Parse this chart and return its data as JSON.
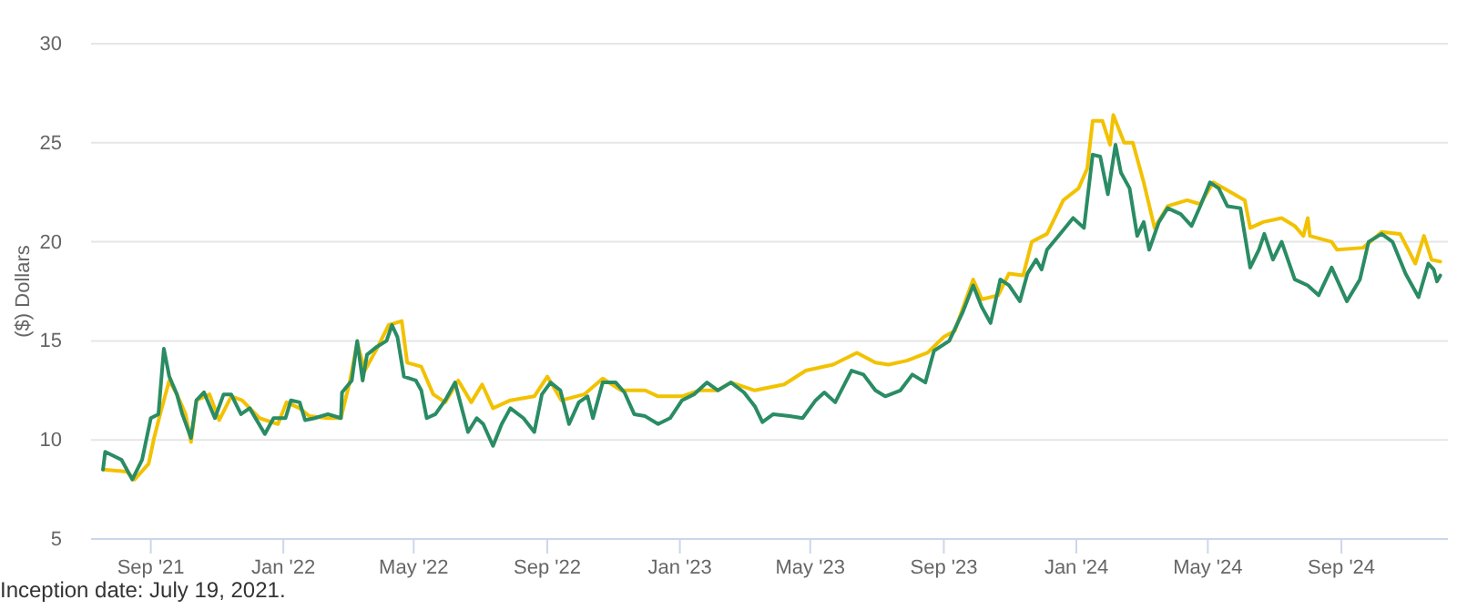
{
  "chart_data": {
    "type": "line",
    "ylabel": "($) Dollars",
    "annotations": [
      "Inception date: July 19, 2021."
    ],
    "xlim": [
      "2021-07-08",
      "2024-12-08"
    ],
    "xticks": [
      {
        "value": "2021-09-01",
        "label": "Sep '21"
      },
      {
        "value": "2022-01-01",
        "label": "Jan '22"
      },
      {
        "value": "2022-05-01",
        "label": "May '22"
      },
      {
        "value": "2022-09-01",
        "label": "Sep '22"
      },
      {
        "value": "2023-01-01",
        "label": "Jan '23"
      },
      {
        "value": "2023-05-01",
        "label": "May '23"
      },
      {
        "value": "2023-09-01",
        "label": "Sep '23"
      },
      {
        "value": "2024-01-01",
        "label": "Jan '24"
      },
      {
        "value": "2024-05-01",
        "label": "May '24"
      },
      {
        "value": "2024-09-01",
        "label": "Sep '24"
      }
    ],
    "ylim": [
      5,
      30
    ],
    "yticks": [
      5,
      10,
      15,
      20,
      25,
      30
    ],
    "grid": "y",
    "marker": "none",
    "line_style": "solid",
    "series": [
      {
        "color": "#f2c200",
        "x": [
          "2021-07-19",
          "2021-08-10",
          "2021-08-17",
          "2021-08-30",
          "2021-09-04",
          "2021-09-11",
          "2021-09-18",
          "2021-09-25",
          "2021-10-03",
          "2021-10-08",
          "2021-10-13",
          "2021-10-25",
          "2021-11-03",
          "2021-11-14",
          "2021-11-24",
          "2021-12-10",
          "2021-12-27",
          "2022-01-04",
          "2022-01-16",
          "2022-01-25",
          "2022-02-11",
          "2022-02-23",
          "2022-03-03",
          "2022-03-10",
          "2022-03-17",
          "2022-03-28",
          "2022-04-08",
          "2022-04-20",
          "2022-04-25",
          "2022-05-08",
          "2022-05-19",
          "2022-05-30",
          "2022-06-11",
          "2022-06-23",
          "2022-07-03",
          "2022-07-13",
          "2022-07-29",
          "2022-08-20",
          "2022-09-01",
          "2022-09-14",
          "2022-10-05",
          "2022-10-22",
          "2022-11-08",
          "2022-11-30",
          "2022-12-12",
          "2023-01-03",
          "2023-01-19",
          "2023-02-05",
          "2023-02-17",
          "2023-03-11",
          "2023-04-07",
          "2023-04-27",
          "2023-05-22",
          "2023-06-13",
          "2023-06-30",
          "2023-07-12",
          "2023-07-29",
          "2023-08-17",
          "2023-09-01",
          "2023-09-11",
          "2023-09-28",
          "2023-10-06",
          "2023-10-21",
          "2023-10-31",
          "2023-11-13",
          "2023-11-21",
          "2023-12-05",
          "2023-12-20",
          "2024-01-03",
          "2024-01-11",
          "2024-01-16",
          "2024-01-25",
          "2024-02-01",
          "2024-02-04",
          "2024-02-14",
          "2024-02-22",
          "2024-03-03",
          "2024-03-13",
          "2024-03-25",
          "2024-04-12",
          "2024-04-24",
          "2024-05-06",
          "2024-05-19",
          "2024-06-04",
          "2024-06-09",
          "2024-06-21",
          "2024-07-08",
          "2024-07-20",
          "2024-07-28",
          "2024-08-01",
          "2024-08-03",
          "2024-08-23",
          "2024-08-28",
          "2024-09-21",
          "2024-10-08",
          "2024-10-25",
          "2024-11-08",
          "2024-11-16",
          "2024-11-23",
          "2024-12-01"
        ],
        "values": [
          8.5,
          8.4,
          8.0,
          8.8,
          10.1,
          11.6,
          13.0,
          12.3,
          11.3,
          9.9,
          12.0,
          12.3,
          11.0,
          12.2,
          12.0,
          11.1,
          10.8,
          11.9,
          11.6,
          11.2,
          11.1,
          11.1,
          12.9,
          14.9,
          13.5,
          14.6,
          15.8,
          16.0,
          13.9,
          13.7,
          12.3,
          11.9,
          13.0,
          11.9,
          12.8,
          11.6,
          12.0,
          12.2,
          13.2,
          12.0,
          12.3,
          13.1,
          12.5,
          12.5,
          12.2,
          12.2,
          12.5,
          12.5,
          12.9,
          12.5,
          12.8,
          13.5,
          13.8,
          14.4,
          13.9,
          13.8,
          14.0,
          14.4,
          15.2,
          15.5,
          18.1,
          17.1,
          17.3,
          18.4,
          18.3,
          20.0,
          20.4,
          22.1,
          22.7,
          23.7,
          26.1,
          26.1,
          24.9,
          26.4,
          25.0,
          25.0,
          23.0,
          20.7,
          21.8,
          22.1,
          21.9,
          23.0,
          22.6,
          22.1,
          20.7,
          21.0,
          21.2,
          20.8,
          20.3,
          21.2,
          20.3,
          20.0,
          19.6,
          19.7,
          20.5,
          20.4,
          18.9,
          20.3,
          19.1,
          19.0
        ]
      },
      {
        "color": "#2a8c64",
        "x": [
          "2021-07-19",
          "2021-07-21",
          "2021-08-05",
          "2021-08-15",
          "2021-08-24",
          "2021-09-01",
          "2021-09-08",
          "2021-09-13",
          "2021-09-18",
          "2021-09-25",
          "2021-09-30",
          "2021-10-08",
          "2021-10-13",
          "2021-10-20",
          "2021-10-30",
          "2021-11-07",
          "2021-11-14",
          "2021-11-23",
          "2021-12-01",
          "2021-12-15",
          "2021-12-23",
          "2022-01-03",
          "2022-01-08",
          "2022-01-16",
          "2022-01-21",
          "2022-01-30",
          "2022-02-11",
          "2022-02-23",
          "2022-02-24",
          "2022-03-05",
          "2022-03-10",
          "2022-03-15",
          "2022-03-19",
          "2022-03-28",
          "2022-04-06",
          "2022-04-11",
          "2022-04-16",
          "2022-04-22",
          "2022-05-03",
          "2022-05-08",
          "2022-05-13",
          "2022-05-21",
          "2022-05-30",
          "2022-06-08",
          "2022-06-20",
          "2022-06-28",
          "2022-07-04",
          "2022-07-13",
          "2022-07-21",
          "2022-07-29",
          "2022-08-10",
          "2022-08-20",
          "2022-08-27",
          "2022-09-04",
          "2022-09-13",
          "2022-09-21",
          "2022-09-30",
          "2022-10-08",
          "2022-10-13",
          "2022-10-22",
          "2022-11-03",
          "2022-11-11",
          "2022-11-20",
          "2022-11-30",
          "2022-12-12",
          "2022-12-23",
          "2023-01-03",
          "2023-01-14",
          "2023-01-26",
          "2023-02-05",
          "2023-02-17",
          "2023-03-01",
          "2023-03-11",
          "2023-03-18",
          "2023-03-28",
          "2023-04-12",
          "2023-04-24",
          "2023-05-06",
          "2023-05-14",
          "2023-05-24",
          "2023-06-08",
          "2023-06-19",
          "2023-06-30",
          "2023-07-09",
          "2023-07-23",
          "2023-08-03",
          "2023-08-15",
          "2023-08-23",
          "2023-09-06",
          "2023-09-18",
          "2023-09-28",
          "2023-10-06",
          "2023-10-14",
          "2023-10-23",
          "2023-10-31",
          "2023-11-10",
          "2023-11-17",
          "2023-11-25",
          "2023-11-30",
          "2023-12-05",
          "2023-12-17",
          "2023-12-29",
          "2024-01-08",
          "2024-01-16",
          "2024-01-23",
          "2024-01-30",
          "2024-02-06",
          "2024-02-11",
          "2024-02-19",
          "2024-02-26",
          "2024-03-03",
          "2024-03-08",
          "2024-03-17",
          "2024-03-25",
          "2024-04-06",
          "2024-04-16",
          "2024-04-24",
          "2024-05-03",
          "2024-05-11",
          "2024-05-19",
          "2024-05-31",
          "2024-06-09",
          "2024-06-17",
          "2024-06-22",
          "2024-06-30",
          "2024-07-08",
          "2024-07-20",
          "2024-08-01",
          "2024-08-11",
          "2024-08-23",
          "2024-09-06",
          "2024-09-18",
          "2024-09-26",
          "2024-10-08",
          "2024-10-18",
          "2024-10-30",
          "2024-11-11",
          "2024-11-20",
          "2024-11-25",
          "2024-11-28",
          "2024-12-01"
        ],
        "values": [
          8.5,
          9.4,
          9.0,
          8.0,
          9.0,
          11.1,
          11.3,
          14.6,
          13.2,
          12.3,
          11.3,
          10.1,
          12.0,
          12.4,
          11.1,
          12.3,
          12.3,
          11.3,
          11.6,
          10.3,
          11.1,
          11.1,
          12.0,
          11.9,
          11.0,
          11.1,
          11.3,
          11.1,
          12.4,
          13.0,
          15.0,
          13.0,
          14.3,
          14.7,
          15.0,
          15.8,
          15.2,
          13.2,
          13.0,
          12.5,
          11.1,
          11.3,
          12.0,
          12.9,
          10.4,
          11.1,
          10.8,
          9.7,
          10.8,
          11.6,
          11.1,
          10.4,
          12.3,
          12.9,
          12.5,
          10.8,
          11.9,
          12.2,
          11.1,
          12.9,
          12.9,
          12.4,
          11.3,
          11.2,
          10.8,
          11.1,
          12.0,
          12.3,
          12.9,
          12.5,
          12.9,
          12.4,
          11.7,
          10.9,
          11.3,
          11.2,
          11.1,
          12.0,
          12.4,
          11.9,
          13.5,
          13.3,
          12.5,
          12.2,
          12.5,
          13.3,
          12.9,
          14.5,
          15.0,
          16.4,
          17.8,
          16.7,
          15.9,
          18.1,
          17.8,
          17.0,
          18.4,
          19.1,
          18.6,
          19.6,
          20.4,
          21.2,
          20.7,
          24.4,
          24.3,
          22.4,
          24.9,
          23.5,
          22.7,
          20.3,
          21.0,
          19.6,
          21.0,
          21.7,
          21.4,
          20.8,
          21.8,
          23.0,
          22.7,
          21.8,
          21.7,
          18.7,
          19.6,
          20.4,
          19.1,
          20.0,
          18.1,
          17.8,
          17.3,
          18.7,
          17.0,
          18.1,
          20.0,
          20.4,
          20.0,
          18.4,
          17.2,
          18.9,
          18.6,
          18.0,
          18.3
        ]
      }
    ]
  }
}
